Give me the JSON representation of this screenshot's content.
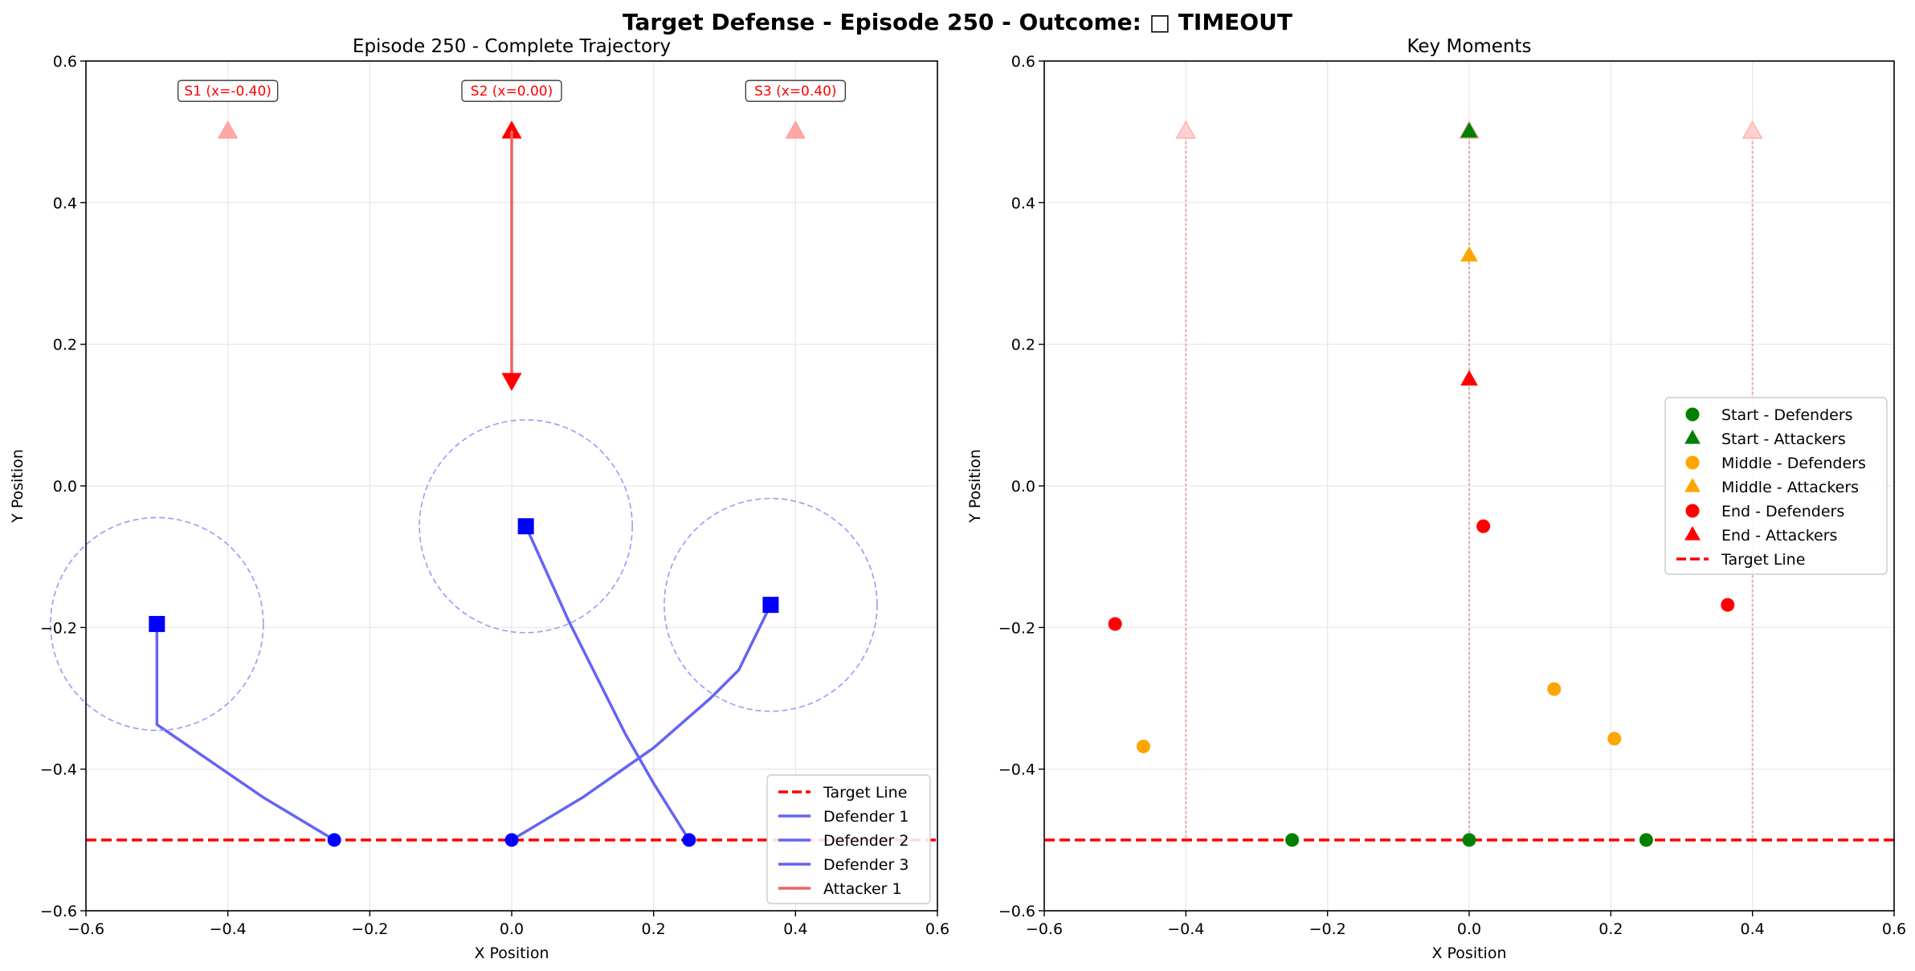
{
  "suptitle": "Target Defense - Episode 250 - Outcome: □ TIMEOUT",
  "colors": {
    "defender": "#0000ff",
    "defender_path": "#6464f6",
    "attacker": "#ff0000",
    "attacker_path": "#f06060",
    "target_line": "#ff0000",
    "grid": "#e6e6e6",
    "start": "#008000",
    "middle": "#ffa500",
    "end": "#ff0000"
  },
  "chart_data": [
    {
      "type": "line",
      "title": "Episode 250 - Complete Trajectory",
      "xlabel": "X Position",
      "ylabel": "Y Position",
      "xlim": [
        -0.6,
        0.6
      ],
      "ylim": [
        -0.6,
        0.6
      ],
      "xticks": [
        -0.6,
        -0.4,
        -0.2,
        0.0,
        0.2,
        0.4,
        0.6
      ],
      "yticks": [
        -0.6,
        -0.4,
        -0.2,
        0.0,
        0.2,
        0.4,
        0.6
      ],
      "xtick_labels": [
        "−0.6",
        "−0.4",
        "−0.2",
        "0.0",
        "0.2",
        "0.4",
        "0.6"
      ],
      "ytick_labels": [
        "−0.6",
        "−0.4",
        "−0.2",
        "0.0",
        "0.2",
        "0.4",
        "0.6"
      ],
      "grid": true,
      "legend_position": "lower right",
      "target_line_y": -0.5,
      "capture_radius": 0.15,
      "spawn_points": [
        {
          "label": "S1 (x=-0.40)",
          "x": -0.4,
          "y": 0.5,
          "active": false
        },
        {
          "label": "S2 (x=0.00)",
          "x": 0.0,
          "y": 0.5,
          "active": true
        },
        {
          "label": "S3 (x=0.40)",
          "x": 0.4,
          "y": 0.5,
          "active": false
        }
      ],
      "series": [
        {
          "name": "Target Line",
          "style": "dashed",
          "color": "#ff0000"
        },
        {
          "name": "Defender 1",
          "color": "#6464f6",
          "points": [
            [
              -0.25,
              -0.5
            ],
            [
              -0.35,
              -0.44
            ],
            [
              -0.43,
              -0.385
            ],
            [
              -0.5,
              -0.337
            ],
            [
              -0.5,
              -0.195
            ]
          ]
        },
        {
          "name": "Defender 2",
          "color": "#6464f6",
          "points": [
            [
              0.25,
              -0.5
            ],
            [
              0.2,
              -0.42
            ],
            [
              0.16,
              -0.35
            ],
            [
              0.12,
              -0.27
            ],
            [
              0.08,
              -0.19
            ],
            [
              0.02,
              -0.057
            ]
          ]
        },
        {
          "name": "Defender 3",
          "color": "#6464f6",
          "points": [
            [
              0.0,
              -0.5
            ],
            [
              0.1,
              -0.44
            ],
            [
              0.2,
              -0.37
            ],
            [
              0.28,
              -0.3
            ],
            [
              0.32,
              -0.26
            ],
            [
              0.365,
              -0.168
            ]
          ]
        },
        {
          "name": "Attacker 1",
          "color": "#f06060",
          "points": [
            [
              0.0,
              0.5
            ],
            [
              0.0,
              0.15
            ]
          ]
        }
      ]
    },
    {
      "type": "scatter",
      "title": "Key Moments",
      "xlabel": "X Position",
      "ylabel": "Y Position",
      "xlim": [
        -0.6,
        0.6
      ],
      "ylim": [
        -0.6,
        0.6
      ],
      "xticks": [
        -0.6,
        -0.4,
        -0.2,
        0.0,
        0.2,
        0.4,
        0.6
      ],
      "yticks": [
        -0.6,
        -0.4,
        -0.2,
        0.0,
        0.2,
        0.4,
        0.6
      ],
      "xtick_labels": [
        "−0.6",
        "−0.4",
        "−0.2",
        "0.0",
        "0.2",
        "0.4",
        "0.6"
      ],
      "ytick_labels": [
        "−0.6",
        "−0.4",
        "−0.2",
        "0.0",
        "0.2",
        "0.4",
        "0.6"
      ],
      "grid": true,
      "legend_position": "center right",
      "target_line_y": -0.5,
      "spawn_x": [
        -0.4,
        0.0,
        0.4
      ],
      "spawn_y": 0.5,
      "series": [
        {
          "name": "Start - Defenders",
          "marker": "circle",
          "color": "#008000",
          "points": [
            [
              -0.25,
              -0.5
            ],
            [
              0.0,
              -0.5
            ],
            [
              0.25,
              -0.5
            ]
          ]
        },
        {
          "name": "Start - Attackers",
          "marker": "triangle",
          "color": "#008000",
          "points": [
            [
              0.0,
              0.5
            ]
          ]
        },
        {
          "name": "Middle - Defenders",
          "marker": "circle",
          "color": "#ffa500",
          "points": [
            [
              -0.46,
              -0.368
            ],
            [
              0.12,
              -0.287
            ],
            [
              0.205,
              -0.357
            ]
          ]
        },
        {
          "name": "Middle - Attackers",
          "marker": "triangle",
          "color": "#ffa500",
          "points": [
            [
              0.0,
              0.325
            ]
          ]
        },
        {
          "name": "End - Defenders",
          "marker": "circle",
          "color": "#ff0000",
          "points": [
            [
              -0.5,
              -0.195
            ],
            [
              0.02,
              -0.057
            ],
            [
              0.365,
              -0.168
            ]
          ]
        },
        {
          "name": "End - Attackers",
          "marker": "triangle",
          "color": "#ff0000",
          "points": [
            [
              0.0,
              0.15
            ]
          ]
        },
        {
          "name": "Target Line",
          "style": "dashed",
          "color": "#ff0000"
        }
      ]
    }
  ]
}
